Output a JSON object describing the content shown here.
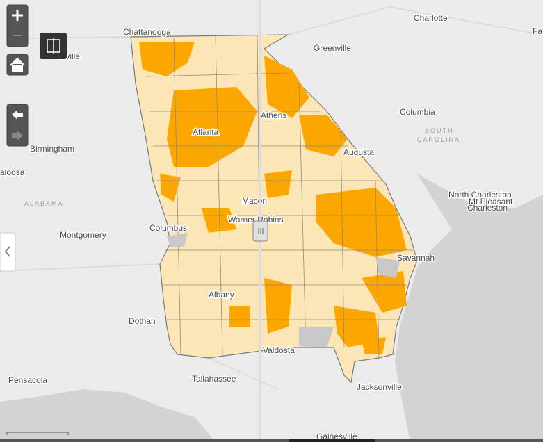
{
  "map": {
    "cities": [
      "Chattanooga",
      "Greenville",
      "Charlotte",
      "Fa",
      "tsville",
      "Athens",
      "Atlanta",
      "Columbia",
      "Augusta",
      "Birmingham",
      "aloosa",
      "North Charleston",
      "Mt Pleasant",
      "Charleston",
      "Macon",
      "Warner Robins",
      "Columbus",
      "Montgomery",
      "Savannah",
      "Albany",
      "Dothan",
      "Valdosta",
      "Pensacola",
      "Tallahassee",
      "Jacksonville",
      "Gainesville"
    ],
    "regions": [
      "SOUTH",
      "CAROLINA",
      "ALABAMA"
    ]
  }
}
